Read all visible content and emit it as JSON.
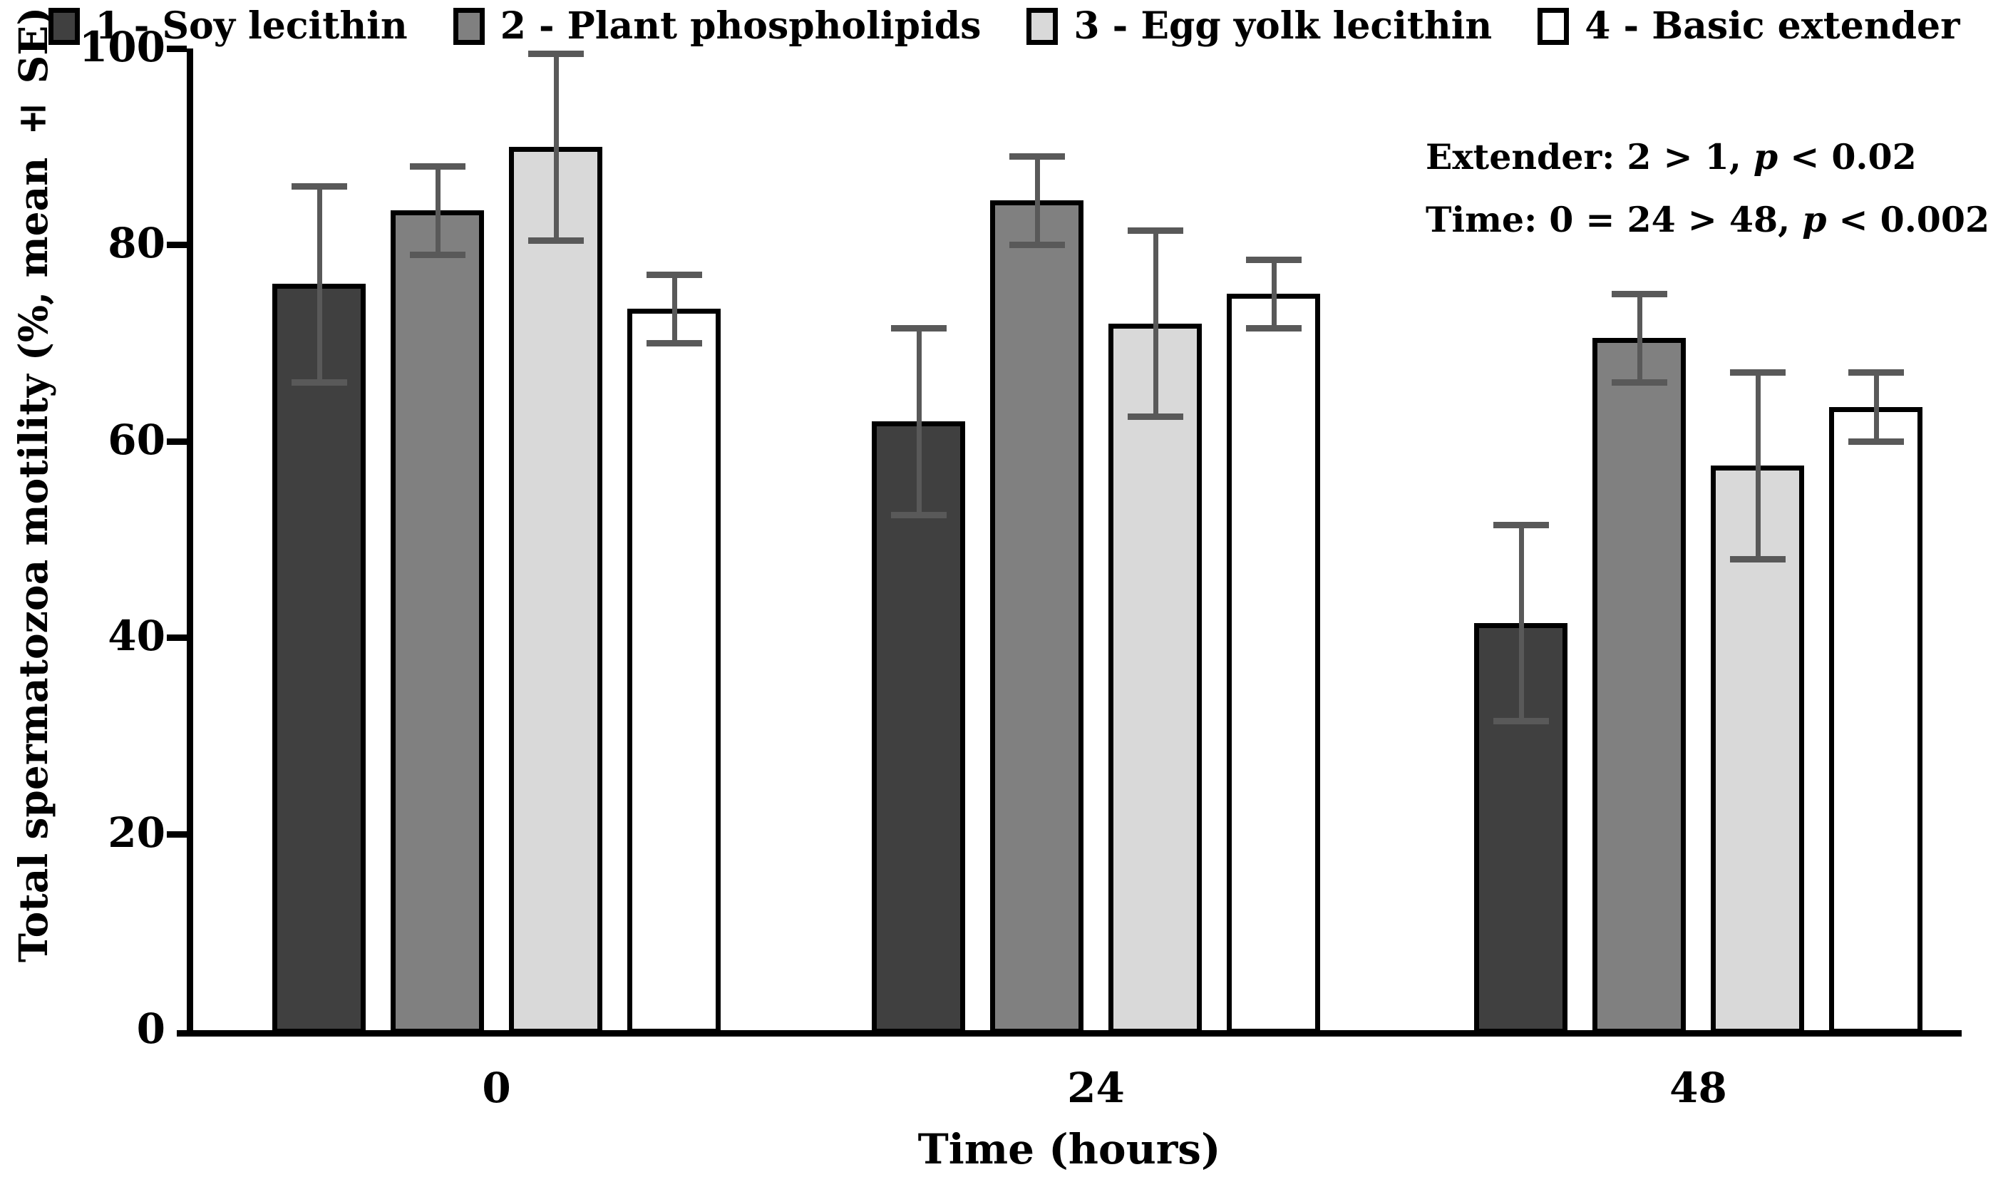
{
  "chart_data": {
    "type": "bar",
    "categories": [
      "0",
      "24",
      "48"
    ],
    "series": [
      {
        "name": "1 - Soy lecithin",
        "color": "#404040",
        "values": [
          76.0,
          62.0,
          41.5
        ],
        "se": [
          10.0,
          9.5,
          10.0
        ]
      },
      {
        "name": "2 - Plant phospholipids",
        "color": "#808080",
        "values": [
          83.5,
          84.5,
          70.5
        ],
        "se": [
          4.5,
          4.5,
          4.5
        ]
      },
      {
        "name": "3 - Egg yolk lecithin",
        "color": "#d9d9d9",
        "values": [
          90.0,
          72.0,
          57.5
        ],
        "se": [
          9.5,
          9.5,
          9.5
        ]
      },
      {
        "name": "4 - Basic extender",
        "color": "#ffffff",
        "values": [
          73.5,
          75.0,
          63.5
        ],
        "se": [
          3.5,
          3.5,
          3.5
        ]
      }
    ],
    "title": "",
    "xlabel": "Time (hours)",
    "ylabel": "Total spermatozoa motility (%, mean ± SE)",
    "ylim": [
      0,
      100
    ],
    "yticks": [
      0,
      20,
      40,
      60,
      80,
      100
    ],
    "grid": false,
    "legend_position": "top",
    "bar_border_color": "#000000",
    "error_bar_color": "#595959",
    "axis_color": "#000000"
  },
  "annotation": {
    "line1": {
      "before": "Extender: 2 > 1, ",
      "p": "p",
      "after": " < 0.02"
    },
    "line2": {
      "before": "Time: 0 = 24 > 48, ",
      "p": "p",
      "after": " < 0.002"
    }
  }
}
